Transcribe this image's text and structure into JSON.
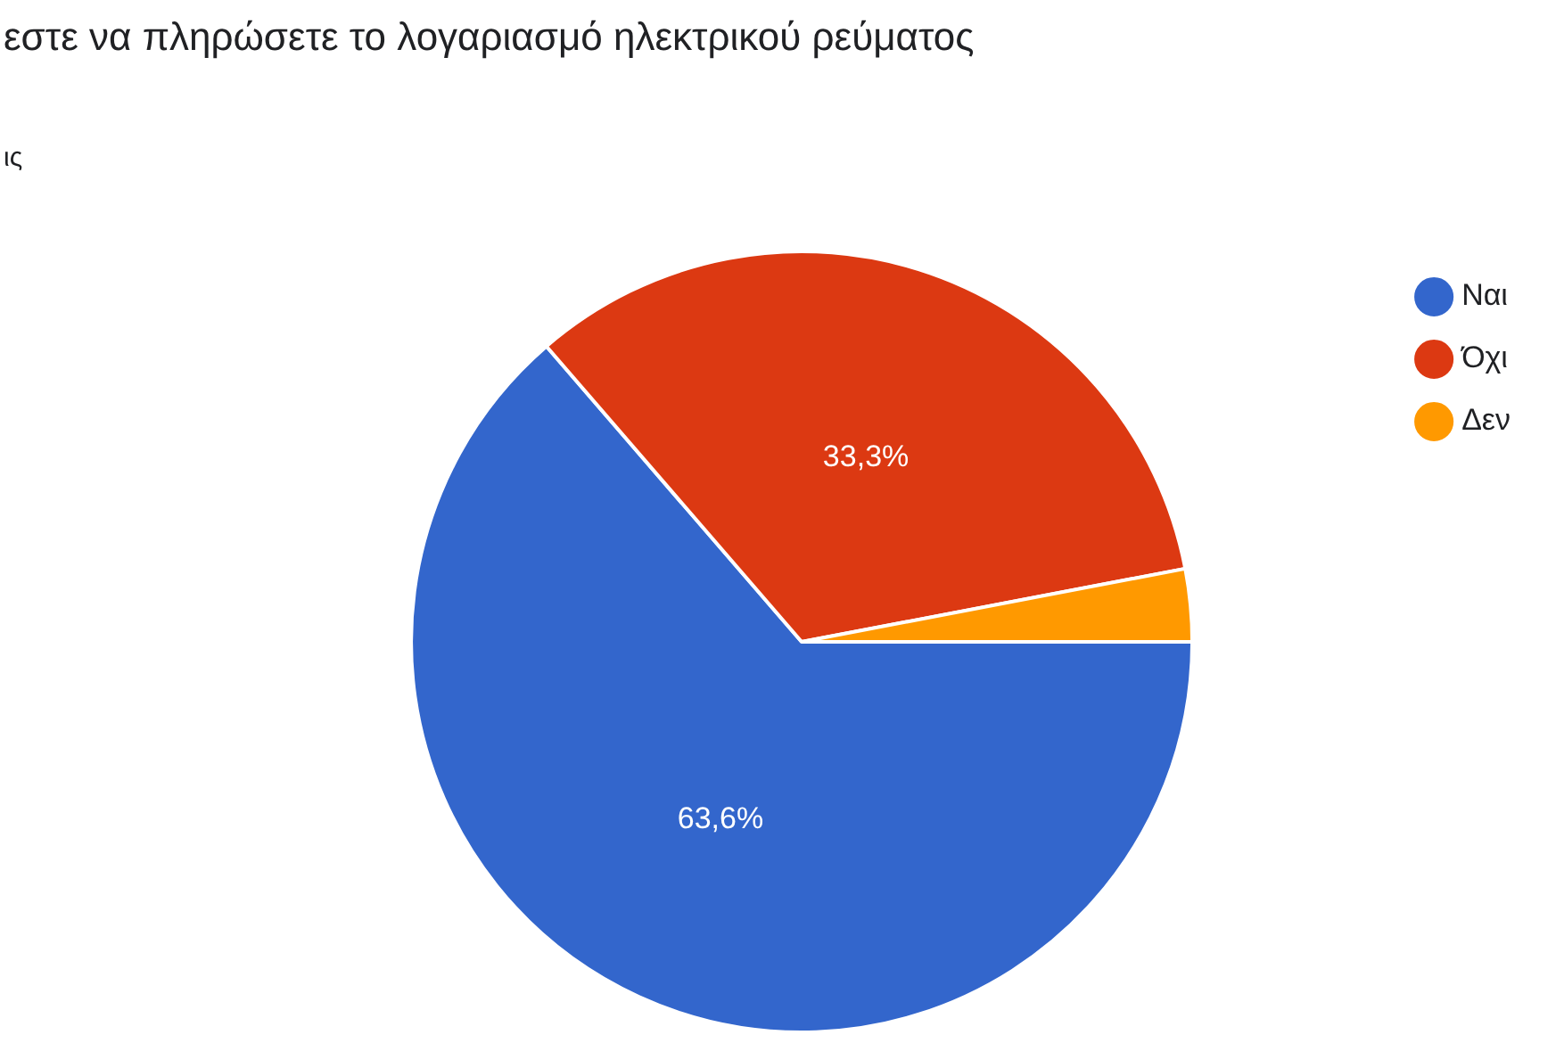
{
  "chart_data": {
    "type": "pie",
    "title": "εστε να πληρώσετε το λογαριασμό ηλεκτρικού ρεύματος",
    "subtitle": "ις",
    "categories": [
      "Ναι",
      "Όχι",
      "Δεν"
    ],
    "values": [
      63.6,
      33.3,
      3.0
    ],
    "colors": [
      "#3366cc",
      "#dc3912",
      "#ff9900"
    ],
    "value_labels": [
      "63,6%",
      "33,3%",
      null
    ],
    "legend": "right"
  }
}
